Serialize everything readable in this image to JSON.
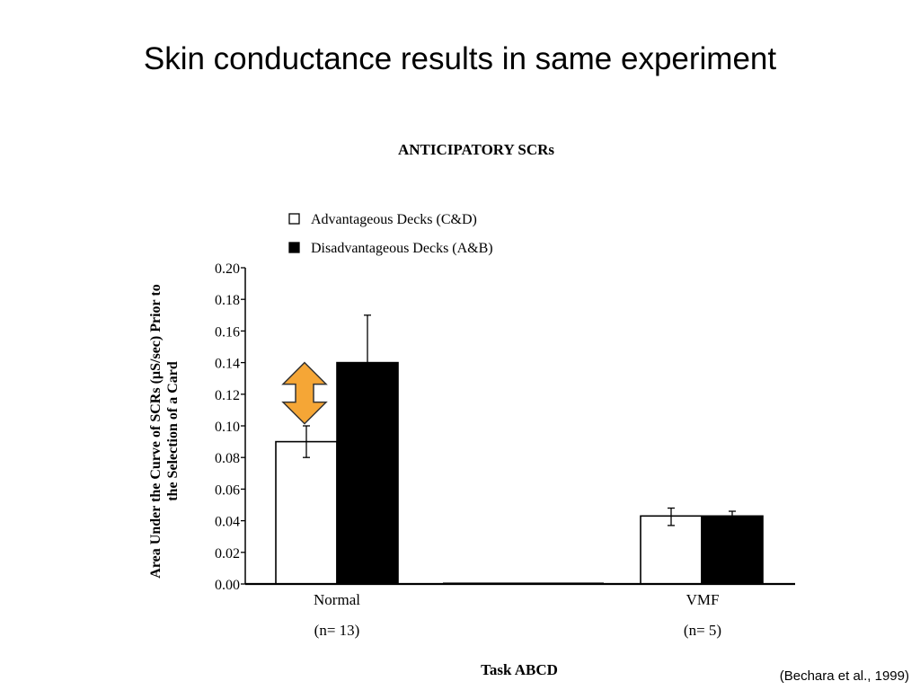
{
  "slide": {
    "title": "Skin conductance results in same experiment",
    "citation": "(Bechara et al., 1999)"
  },
  "colors": {
    "advantageous": "#ffffff",
    "disadvantageous": "#000000",
    "arrow_fill": "#f5a636",
    "arrow_stroke": "#333333"
  },
  "chart_data": {
    "type": "bar",
    "title": "ANTICIPATORY SCRs",
    "xlabel": "Task ABCD",
    "ylabel_lines": [
      "Area Under the Curve of SCRs (µS/sec) Prior to",
      "the Selection of a Card"
    ],
    "ylim": [
      0,
      0.2
    ],
    "yticks": [
      "0.00",
      "0.02",
      "0.04",
      "0.06",
      "0.08",
      "0.10",
      "0.12",
      "0.14",
      "0.16",
      "0.18",
      "0.20"
    ],
    "categories": [
      {
        "name": "Normal",
        "n": "(n= 13)"
      },
      {
        "name": "VMF",
        "n": "(n= 5)"
      }
    ],
    "series": [
      {
        "name": "Advantageous Decks (C&D)",
        "values": [
          0.09,
          0.043
        ],
        "errors": [
          0.01,
          0.005
        ]
      },
      {
        "name": "Disadvantageous Decks (A&B)",
        "values": [
          0.14,
          0.043
        ],
        "errors": [
          0.03,
          0.003
        ]
      }
    ],
    "legend_position": "top-left",
    "annotation": "double-headed arrow between Normal bars"
  }
}
